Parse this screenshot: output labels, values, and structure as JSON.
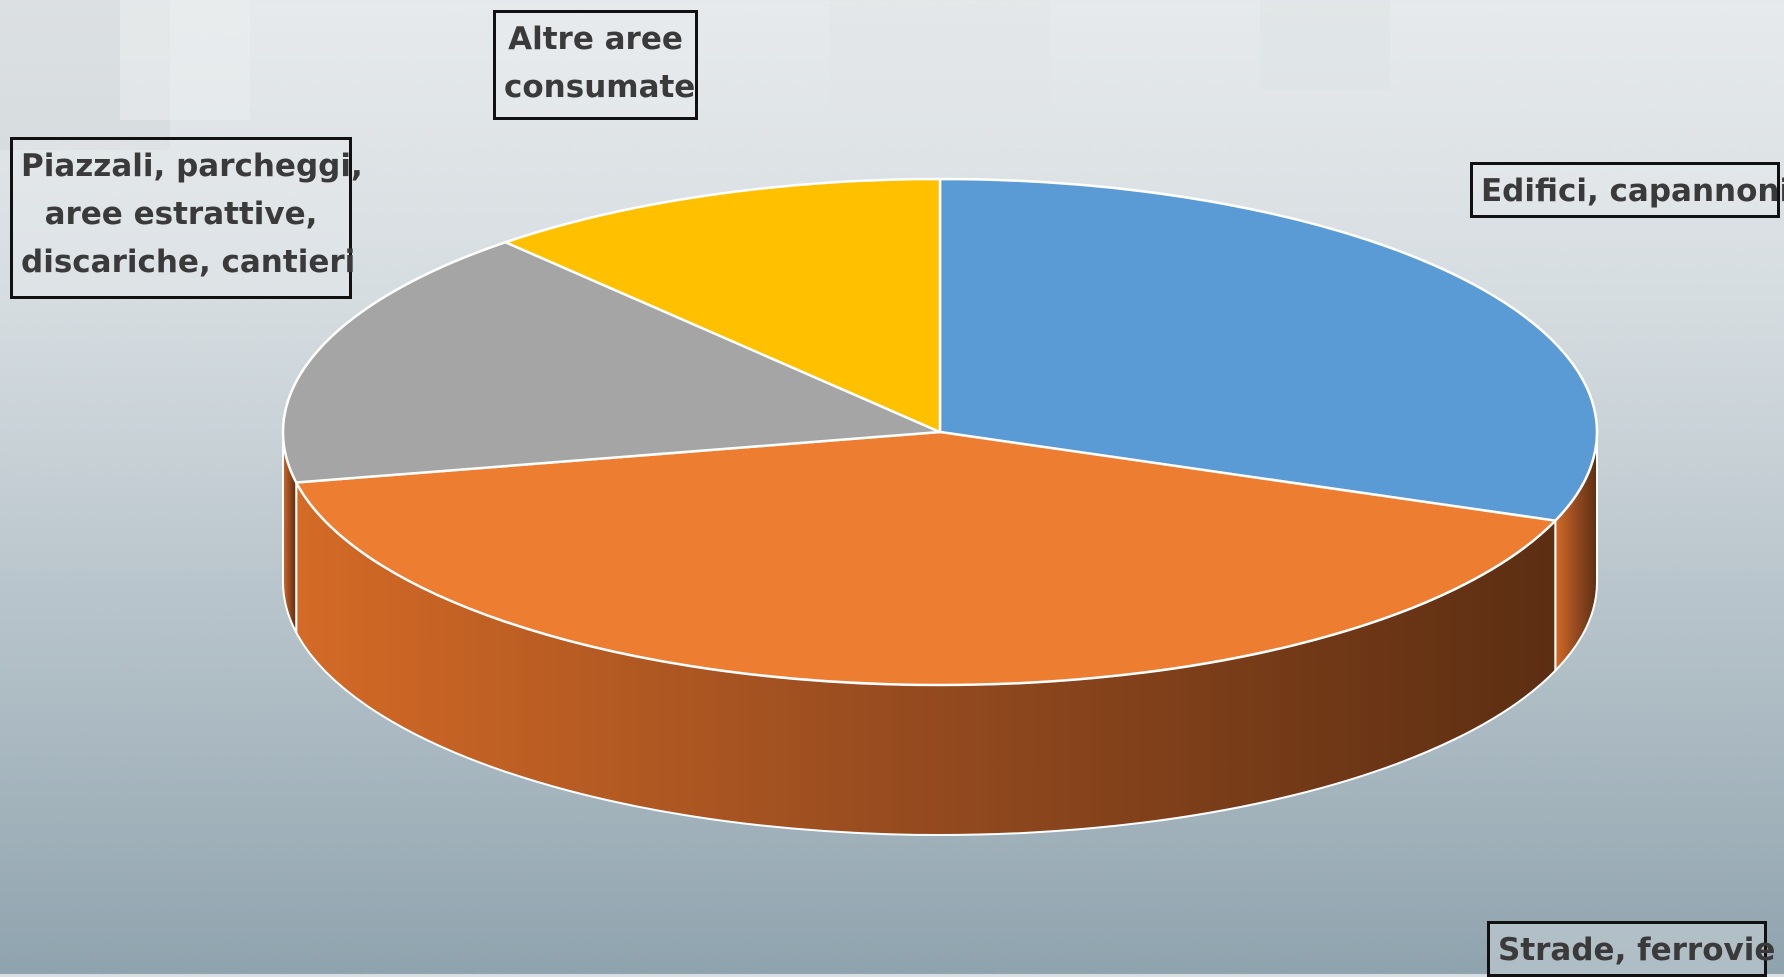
{
  "chart_data": {
    "type": "pie",
    "style": "3d",
    "title": "",
    "legend": "none",
    "slices": [
      {
        "label": "Edifici, capannoni",
        "value": 30.7,
        "color": "#5b9bd5"
      },
      {
        "label": "Strade, ferrovie",
        "value": 41.1,
        "color": "#ed7d31"
      },
      {
        "label": "Piazzali, parcheggi, aree estrattive, discariche, cantieri",
        "value": 16.7,
        "color": "#a5a5a5"
      },
      {
        "label": "Altre aree consumate",
        "value": 11.5,
        "color": "#ffc000"
      }
    ],
    "labels": {
      "edifici": "Edifici, capannoni",
      "strade": "Strade, ferrovie",
      "altre_1": "Altre aree",
      "altre_2": "consumate",
      "piazzali_1": "Piazzali, parcheggi,",
      "piazzali_2": "aree estrattive,",
      "piazzali_3": "discariche, cantieri"
    }
  }
}
